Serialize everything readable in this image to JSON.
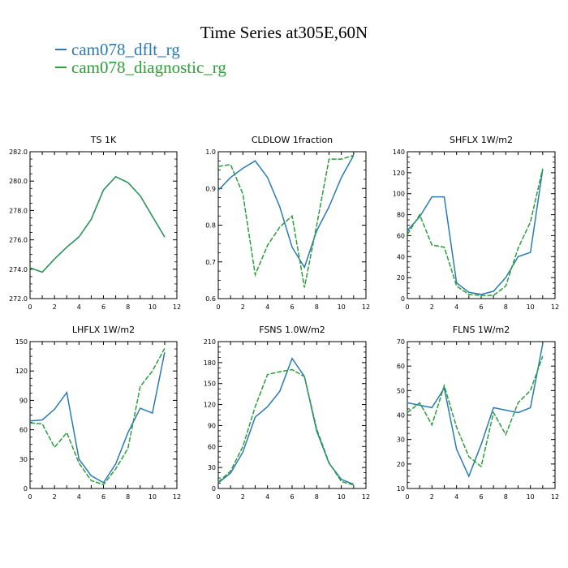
{
  "title": "Time Series at305E,60N",
  "legend": [
    {
      "label": "cam078_dflt_rg",
      "color": "#2a7bb5"
    },
    {
      "label": "cam078_diagnostic_rg",
      "color": "#2c9e3a"
    }
  ],
  "chart_data": [
    {
      "type": "line",
      "title": "TS 1K",
      "xlim": [
        0,
        12
      ],
      "xticks": [
        0,
        1,
        2,
        3,
        4,
        5,
        6,
        7,
        8,
        9,
        10,
        11,
        12
      ],
      "ylim": [
        272,
        282
      ],
      "yticks": [
        "272.0",
        "274.0",
        "276.0",
        "278.0",
        "280.0",
        "282.0"
      ],
      "x": [
        0,
        1,
        2,
        3,
        4,
        5,
        6,
        7,
        8,
        9,
        10,
        11
      ],
      "series": [
        {
          "name": "cam078_dflt_rg",
          "values": [
            274.1,
            273.8,
            274.7,
            275.5,
            276.2,
            277.4,
            279.4,
            280.3,
            279.9,
            279.0,
            277.6,
            276.2
          ]
        },
        {
          "name": "cam078_diagnostic_rg",
          "values": [
            274.1,
            273.8,
            274.7,
            275.5,
            276.2,
            277.4,
            279.4,
            280.3,
            279.9,
            279.0,
            277.6,
            276.2
          ]
        }
      ]
    },
    {
      "type": "line",
      "title": "CLDLOW 1fraction",
      "xlim": [
        0,
        12
      ],
      "xticks": [
        0,
        1,
        2,
        3,
        4,
        5,
        6,
        7,
        8,
        9,
        10,
        11,
        12
      ],
      "ylim": [
        0.6,
        1.0
      ],
      "yticks": [
        "0.6",
        "0.7",
        "0.8",
        "0.9",
        "1.0"
      ],
      "x": [
        0,
        1,
        2,
        3,
        4,
        5,
        6,
        7,
        8,
        9,
        10,
        11
      ],
      "series": [
        {
          "name": "cam078_dflt_rg",
          "values": [
            0.895,
            0.93,
            0.955,
            0.975,
            0.93,
            0.85,
            0.74,
            0.685,
            0.785,
            0.85,
            0.93,
            0.99
          ]
        },
        {
          "name": "cam078_diagnostic_rg",
          "values": [
            0.96,
            0.965,
            0.885,
            0.665,
            0.745,
            0.795,
            0.825,
            0.63,
            0.8,
            0.98,
            0.98,
            0.99
          ]
        }
      ]
    },
    {
      "type": "line",
      "title": "SHFLX 1W/m2",
      "xlim": [
        0,
        12
      ],
      "xticks": [
        0,
        1,
        2,
        3,
        4,
        5,
        6,
        7,
        8,
        9,
        10,
        11,
        12
      ],
      "ylim": [
        0,
        140
      ],
      "yticks": [
        "0",
        "20",
        "40",
        "60",
        "80",
        "100",
        "120",
        "140"
      ],
      "x": [
        0,
        1,
        2,
        3,
        4,
        5,
        6,
        7,
        8,
        9,
        10,
        11
      ],
      "series": [
        {
          "name": "cam078_dflt_rg",
          "values": [
            65,
            78,
            97,
            97,
            15,
            6,
            4,
            7,
            20,
            40,
            44,
            123
          ]
        },
        {
          "name": "cam078_diagnostic_rg",
          "values": [
            61,
            80,
            51,
            49,
            12,
            4,
            3,
            3,
            12,
            48,
            73,
            124
          ]
        }
      ]
    },
    {
      "type": "line",
      "title": "LHFLX 1W/m2",
      "xlim": [
        0,
        12
      ],
      "xticks": [
        0,
        1,
        2,
        3,
        4,
        5,
        6,
        7,
        8,
        9,
        10,
        11,
        12
      ],
      "ylim": [
        0,
        150
      ],
      "yticks": [
        "0",
        "30",
        "60",
        "90",
        "120",
        "150"
      ],
      "x": [
        0,
        1,
        2,
        3,
        4,
        5,
        6,
        7,
        8,
        9,
        10,
        11
      ],
      "series": [
        {
          "name": "cam078_dflt_rg",
          "values": [
            69,
            70,
            81,
            98,
            30,
            13,
            6,
            25,
            57,
            82,
            77,
            139
          ]
        },
        {
          "name": "cam078_diagnostic_rg",
          "values": [
            67,
            66,
            42,
            57,
            26,
            8,
            4,
            20,
            41,
            104,
            120,
            143
          ]
        }
      ]
    },
    {
      "type": "line",
      "title": "FSNS 1.0W/m2",
      "xlim": [
        0,
        12
      ],
      "xticks": [
        0,
        1,
        2,
        3,
        4,
        5,
        6,
        7,
        8,
        9,
        10,
        11,
        12
      ],
      "ylim": [
        0,
        210
      ],
      "yticks": [
        "0",
        "30",
        "60",
        "90",
        "120",
        "150",
        "180",
        "210"
      ],
      "x": [
        0,
        1,
        2,
        3,
        4,
        5,
        6,
        7,
        8,
        9,
        10,
        11
      ],
      "series": [
        {
          "name": "cam078_dflt_rg",
          "values": [
            8,
            22,
            52,
            102,
            117,
            139,
            186,
            160,
            82,
            36,
            13,
            6
          ]
        },
        {
          "name": "cam078_diagnostic_rg",
          "values": [
            9,
            25,
            60,
            117,
            163,
            167,
            170,
            160,
            85,
            37,
            10,
            5
          ]
        }
      ]
    },
    {
      "type": "line",
      "title": "FLNS 1W/m2",
      "xlim": [
        0,
        12
      ],
      "xticks": [
        0,
        1,
        2,
        3,
        4,
        5,
        6,
        7,
        8,
        9,
        10,
        11,
        12
      ],
      "ylim": [
        10,
        70
      ],
      "yticks": [
        "10",
        "20",
        "30",
        "40",
        "50",
        "60",
        "70"
      ],
      "x": [
        0,
        1,
        2,
        3,
        4,
        5,
        6,
        7,
        8,
        9,
        10,
        11
      ],
      "series": [
        {
          "name": "cam078_dflt_rg",
          "values": [
            45,
            44,
            43,
            51,
            26,
            15,
            28,
            43,
            42,
            41,
            43,
            69
          ]
        },
        {
          "name": "cam078_diagnostic_rg",
          "values": [
            41,
            45,
            36,
            52,
            35,
            23,
            19,
            41,
            32,
            45,
            50,
            64
          ]
        }
      ]
    }
  ]
}
